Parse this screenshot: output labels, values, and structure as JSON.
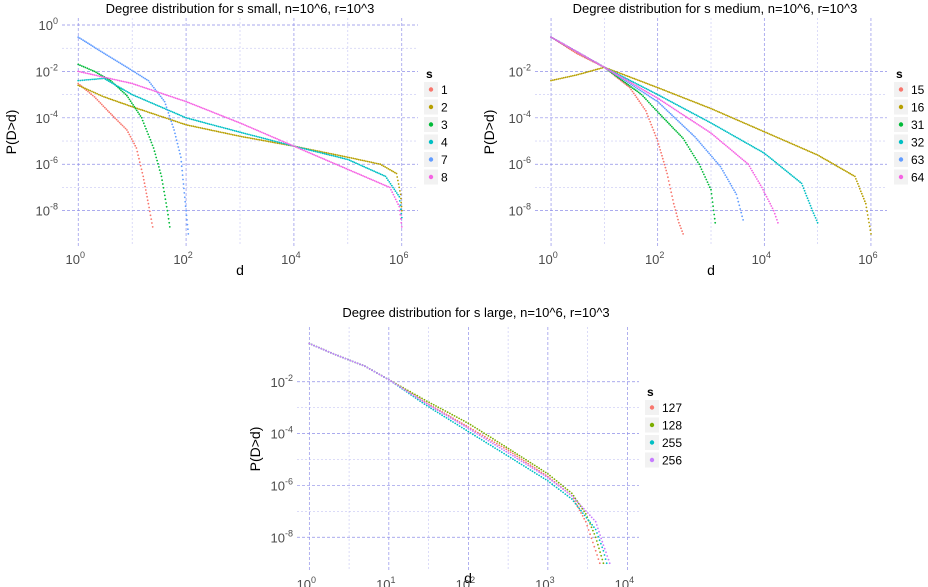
{
  "chart_data": [
    {
      "type": "scatter",
      "title": "Degree distribution for s small, n=10^6, r=10^3",
      "xlabel": "d",
      "ylabel": "P(D>d)",
      "xscale": "log",
      "yscale": "log",
      "xlim": [
        0.5,
        2000000
      ],
      "ylim": [
        3e-10,
        2
      ],
      "x_ticks": [
        {
          "base": "10",
          "exp": "0",
          "value": 1
        },
        {
          "base": "10",
          "exp": "2",
          "value": 100
        },
        {
          "base": "10",
          "exp": "4",
          "value": 10000
        },
        {
          "base": "10",
          "exp": "6",
          "value": 1000000
        }
      ],
      "y_ticks": [
        {
          "base": "10",
          "exp": "0",
          "value": 1
        },
        {
          "base": "10",
          "exp": "-2",
          "value": 0.01
        },
        {
          "base": "10",
          "exp": "-4",
          "value": 0.0001
        },
        {
          "base": "10",
          "exp": "-6",
          "value": 1e-06
        },
        {
          "base": "10",
          "exp": "-8",
          "value": 1e-08
        }
      ],
      "grid": true,
      "legend_title": "s",
      "legend_position": "right",
      "series": [
        {
          "name": "1",
          "color": "#F8766D",
          "points": [
            [
              1,
              0.003
            ],
            [
              2,
              0.0008
            ],
            [
              4,
              0.00015
            ],
            [
              8,
              3e-05
            ],
            [
              12,
              5e-06
            ],
            [
              16,
              3e-07
            ],
            [
              20,
              2e-08
            ],
            [
              24,
              2e-09
            ]
          ]
        },
        {
          "name": "2",
          "color": "#B79F00",
          "points": [
            [
              1,
              0.0025
            ],
            [
              3,
              0.0008
            ],
            [
              10,
              0.0003
            ],
            [
              100,
              5e-05
            ],
            [
              1000,
              1.6e-05
            ],
            [
              10000,
              6e-06
            ],
            [
              100000,
              2e-06
            ],
            [
              400000,
              1e-06
            ],
            [
              800000,
              4e-07
            ],
            [
              950000,
              5e-08
            ],
            [
              1000000,
              1e-08
            ]
          ]
        },
        {
          "name": "3",
          "color": "#00BA38",
          "points": [
            [
              1,
              0.02
            ],
            [
              2,
              0.01
            ],
            [
              4,
              0.004
            ],
            [
              8,
              0.0009
            ],
            [
              15,
              0.0001
            ],
            [
              25,
              5e-06
            ],
            [
              35,
              3e-07
            ],
            [
              45,
              1e-08
            ],
            [
              50,
              2e-09
            ]
          ]
        },
        {
          "name": "4",
          "color": "#00BFC4",
          "points": [
            [
              1,
              0.004
            ],
            [
              3,
              0.005
            ],
            [
              10,
              0.001
            ],
            [
              100,
              0.0001
            ],
            [
              1000,
              2.4e-05
            ],
            [
              10000,
              6e-06
            ],
            [
              100000,
              1.6e-06
            ],
            [
              500000,
              3e-07
            ],
            [
              900000,
              4e-08
            ],
            [
              1000000,
              5e-09
            ]
          ]
        },
        {
          "name": "7",
          "color": "#619CFF",
          "points": [
            [
              1,
              0.3
            ],
            [
              3,
              0.06
            ],
            [
              8,
              0.015
            ],
            [
              20,
              0.004
            ],
            [
              40,
              0.0005
            ],
            [
              60,
              3e-05
            ],
            [
              80,
              2e-06
            ],
            [
              100,
              1e-08
            ],
            [
              110,
              1e-09
            ]
          ]
        },
        {
          "name": "8",
          "color": "#F564E3",
          "points": [
            [
              1,
              0.01
            ],
            [
              10,
              0.003
            ],
            [
              100,
              0.0005
            ],
            [
              1000,
              6e-05
            ],
            [
              10000,
              6e-06
            ],
            [
              100000,
              6e-07
            ],
            [
              600000,
              1e-07
            ],
            [
              900000,
              1.5e-08
            ],
            [
              1000000,
              2e-09
            ]
          ]
        }
      ]
    },
    {
      "type": "scatter",
      "title": "Degree distribution for s medium, n=10^6, r=10^3",
      "xlabel": "d",
      "ylabel": "P(D>d)",
      "xscale": "log",
      "yscale": "log",
      "xlim": [
        0.5,
        2000000
      ],
      "ylim": [
        3e-10,
        2
      ],
      "x_ticks": [
        {
          "base": "10",
          "exp": "0",
          "value": 1
        },
        {
          "base": "10",
          "exp": "2",
          "value": 100
        },
        {
          "base": "10",
          "exp": "4",
          "value": 10000
        },
        {
          "base": "10",
          "exp": "6",
          "value": 1000000
        }
      ],
      "y_ticks": [
        {
          "base": "10",
          "exp": "-2",
          "value": 0.01
        },
        {
          "base": "10",
          "exp": "-4",
          "value": 0.0001
        },
        {
          "base": "10",
          "exp": "-6",
          "value": 1e-06
        },
        {
          "base": "10",
          "exp": "-8",
          "value": 1e-08
        }
      ],
      "grid": true,
      "legend_title": "s",
      "legend_position": "right",
      "series": [
        {
          "name": "15",
          "color": "#F8766D",
          "points": [
            [
              1,
              0.3
            ],
            [
              3,
              0.06
            ],
            [
              10,
              0.015
            ],
            [
              30,
              0.002
            ],
            [
              60,
              0.0002
            ],
            [
              100,
              1e-05
            ],
            [
              150,
              4e-07
            ],
            [
              200,
              2e-08
            ],
            [
              250,
              3e-09
            ],
            [
              300,
              1e-09
            ]
          ]
        },
        {
          "name": "16",
          "color": "#B79F00",
          "points": [
            [
              1,
              0.004
            ],
            [
              3,
              0.007
            ],
            [
              10,
              0.015
            ],
            [
              100,
              0.002
            ],
            [
              1000,
              0.00025
            ],
            [
              10000,
              2.5e-05
            ],
            [
              100000,
              2.5e-06
            ],
            [
              500000,
              3e-07
            ],
            [
              800000,
              2e-08
            ],
            [
              1000000,
              1e-09
            ]
          ]
        },
        {
          "name": "31",
          "color": "#00BA38",
          "points": [
            [
              1,
              0.3
            ],
            [
              10,
              0.015
            ],
            [
              50,
              0.001
            ],
            [
              100,
              0.00018
            ],
            [
              300,
              1.3e-05
            ],
            [
              600,
              1e-06
            ],
            [
              1000,
              8e-08
            ],
            [
              1200,
              3e-09
            ]
          ]
        },
        {
          "name": "32",
          "color": "#00BFC4",
          "points": [
            [
              1,
              0.3
            ],
            [
              10,
              0.015
            ],
            [
              100,
              0.001
            ],
            [
              1000,
              6e-05
            ],
            [
              10000,
              3e-06
            ],
            [
              50000,
              1.5e-07
            ],
            [
              80000,
              1e-08
            ],
            [
              100000,
              3e-09
            ]
          ]
        },
        {
          "name": "63",
          "color": "#619CFF",
          "points": [
            [
              1,
              0.3
            ],
            [
              10,
              0.015
            ],
            [
              100,
              0.0005
            ],
            [
              500,
              1.5e-05
            ],
            [
              1500,
              8e-07
            ],
            [
              3000,
              5e-08
            ],
            [
              4000,
              4e-09
            ]
          ]
        },
        {
          "name": "64",
          "color": "#F564E3",
          "points": [
            [
              1,
              0.3
            ],
            [
              10,
              0.015
            ],
            [
              100,
              0.0007
            ],
            [
              1000,
              2.2e-05
            ],
            [
              5000,
              1e-06
            ],
            [
              9000,
              1e-07
            ],
            [
              15000,
              1e-08
            ],
            [
              18000,
              3e-09
            ]
          ]
        }
      ]
    },
    {
      "type": "scatter",
      "title": "Degree distribution for s large, n=10^6, r=10^3",
      "xlabel": "d",
      "ylabel": "P(D>d)",
      "xscale": "log",
      "yscale": "log",
      "xlim": [
        0.7,
        14000
      ],
      "ylim": [
        5e-10,
        1.3
      ],
      "x_ticks": [
        {
          "base": "10",
          "exp": "0",
          "value": 1
        },
        {
          "base": "10",
          "exp": "1",
          "value": 10
        },
        {
          "base": "10",
          "exp": "2",
          "value": 100
        },
        {
          "base": "10",
          "exp": "3",
          "value": 1000
        },
        {
          "base": "10",
          "exp": "4",
          "value": 10000
        }
      ],
      "y_ticks": [
        {
          "base": "10",
          "exp": "-2",
          "value": 0.01
        },
        {
          "base": "10",
          "exp": "-4",
          "value": 0.0001
        },
        {
          "base": "10",
          "exp": "-6",
          "value": 1e-06
        },
        {
          "base": "10",
          "exp": "-8",
          "value": 1e-08
        }
      ],
      "grid": true,
      "legend_title": "s",
      "legend_position": "right",
      "series": [
        {
          "name": "127",
          "color": "#F8766D",
          "points": [
            [
              1,
              0.3
            ],
            [
              2,
              0.12
            ],
            [
              5,
              0.04
            ],
            [
              10,
              0.012
            ],
            [
              30,
              0.0015
            ],
            [
              100,
              0.00018
            ],
            [
              300,
              2.5e-05
            ],
            [
              1000,
              2.2e-06
            ],
            [
              2000,
              4e-07
            ],
            [
              3000,
              4e-08
            ],
            [
              4000,
              3e-09
            ],
            [
              4500,
              1e-09
            ]
          ]
        },
        {
          "name": "128",
          "color": "#7CAE00",
          "points": [
            [
              1,
              0.3
            ],
            [
              2,
              0.12
            ],
            [
              5,
              0.04
            ],
            [
              10,
              0.012
            ],
            [
              30,
              0.0018
            ],
            [
              100,
              0.00025
            ],
            [
              300,
              3e-05
            ],
            [
              1000,
              2.8e-06
            ],
            [
              2000,
              5e-07
            ],
            [
              3000,
              8e-08
            ],
            [
              4000,
              1e-08
            ],
            [
              5000,
              1e-09
            ]
          ]
        },
        {
          "name": "255",
          "color": "#00BFC4",
          "points": [
            [
              1,
              0.3
            ],
            [
              2,
              0.12
            ],
            [
              5,
              0.04
            ],
            [
              10,
              0.012
            ],
            [
              30,
              0.0012
            ],
            [
              100,
              0.00012
            ],
            [
              300,
              1.5e-05
            ],
            [
              1000,
              1.5e-06
            ],
            [
              2000,
              3e-07
            ],
            [
              4000,
              2e-08
            ],
            [
              5000,
              3e-09
            ],
            [
              5500,
              1e-09
            ]
          ]
        },
        {
          "name": "256",
          "color": "#C77CFF",
          "points": [
            [
              1,
              0.3
            ],
            [
              2,
              0.12
            ],
            [
              5,
              0.04
            ],
            [
              10,
              0.012
            ],
            [
              30,
              0.0014
            ],
            [
              100,
              0.00016
            ],
            [
              300,
              2e-05
            ],
            [
              1000,
              2e-06
            ],
            [
              2000,
              4e-07
            ],
            [
              4000,
              4e-08
            ],
            [
              5000,
              5e-09
            ],
            [
              6000,
              1e-09
            ]
          ]
        }
      ]
    }
  ]
}
